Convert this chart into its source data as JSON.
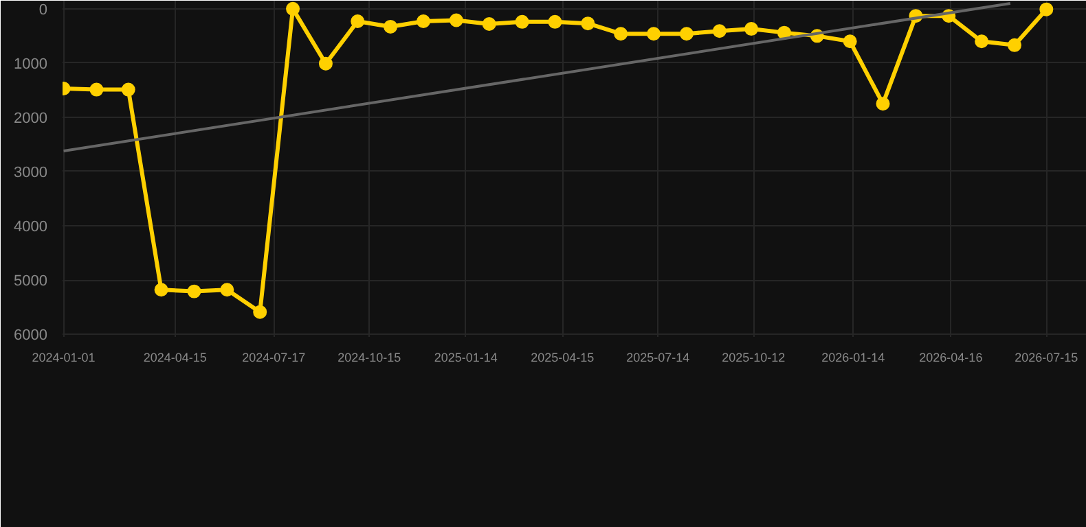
{
  "chart_data": {
    "type": "line",
    "x": [
      "2024-01-01",
      "2024-02-01",
      "2024-03-02",
      "2024-04-02",
      "2024-05-03",
      "2024-06-03",
      "2024-07-04",
      "2024-08-04",
      "2024-09-04",
      "2024-10-04",
      "2024-11-04",
      "2024-12-05",
      "2025-01-05",
      "2025-02-05",
      "2025-03-08",
      "2025-04-08",
      "2025-05-09",
      "2025-06-09",
      "2025-07-10",
      "2025-08-10",
      "2025-09-10",
      "2025-10-10",
      "2025-11-10",
      "2025-12-11",
      "2026-01-11",
      "2026-02-11",
      "2026-03-14",
      "2026-04-14",
      "2026-05-15",
      "2026-06-15",
      "2026-07-15"
    ],
    "series": [
      {
        "color": "#ffd000",
        "marker": "circle",
        "values": [
          1470,
          1490,
          1490,
          5180,
          5210,
          5180,
          5590,
          0,
          1010,
          230,
          330,
          230,
          210,
          280,
          240,
          240,
          270,
          460,
          460,
          460,
          410,
          370,
          440,
          500,
          600,
          1750,
          130,
          130,
          600,
          670,
          10
        ]
      },
      {
        "type": "line",
        "color": "#666666",
        "marker": "none",
        "x": [
          "2024-01-01",
          "2026-06-11"
        ],
        "values": [
          2620,
          -100
        ]
      }
    ],
    "ylim": [
      6050,
      -150
    ],
    "yticks": [
      0,
      1000,
      2000,
      3000,
      4000,
      5000,
      6000
    ],
    "xlim": [
      "2023-12-31",
      "2026-08-22"
    ],
    "xticks": [
      {
        "value": "2024-01-01",
        "label": "2024-01-01"
      },
      {
        "value": "2024-04-15",
        "label": "2024-04-15"
      },
      {
        "value": "2024-07-17",
        "label": "2024-07-17"
      },
      {
        "value": "2024-10-15",
        "label": "2024-10-15"
      },
      {
        "value": "2025-01-14",
        "label": "2025-01-14"
      },
      {
        "value": "2025-04-15",
        "label": "2025-04-15"
      },
      {
        "value": "2025-07-14",
        "label": "2025-07-14"
      },
      {
        "value": "2025-10-12",
        "label": "2025-10-12"
      },
      {
        "value": "2026-01-14",
        "label": "2026-01-14"
      },
      {
        "value": "2026-04-16",
        "label": "2026-04-16"
      },
      {
        "value": "2026-07-15",
        "label": "2026-07-15"
      }
    ],
    "grid": true
  }
}
